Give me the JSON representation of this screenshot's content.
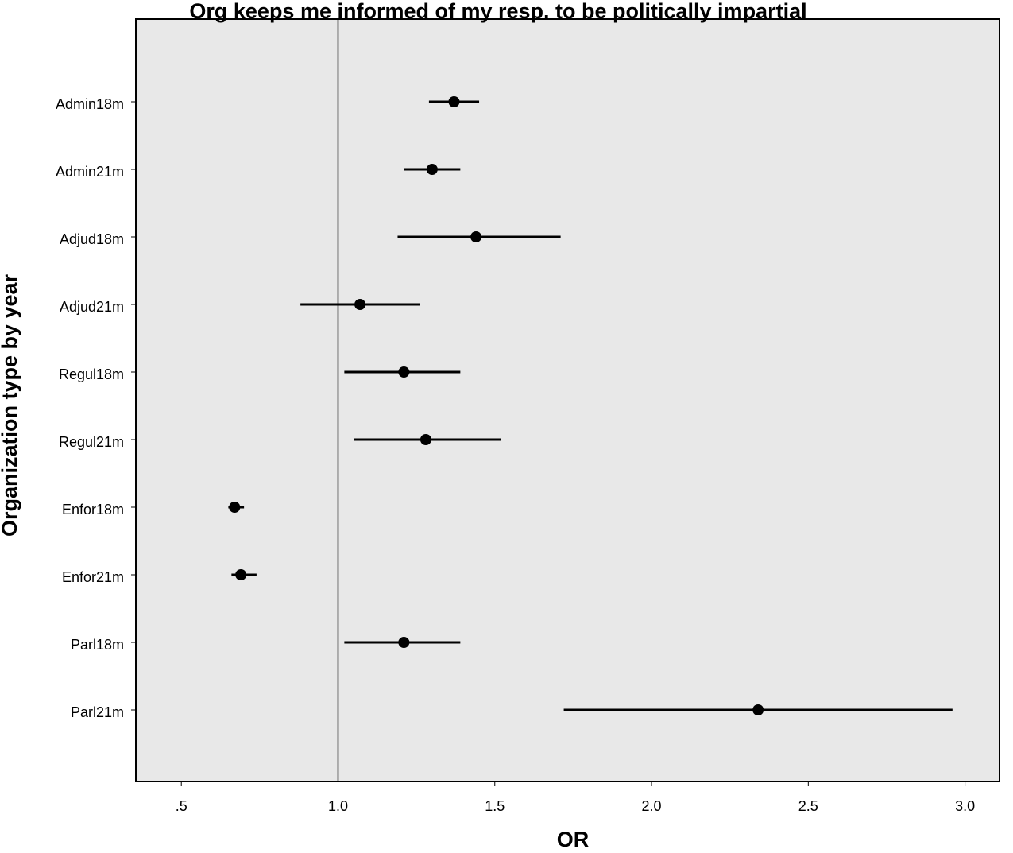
{
  "chart_data": {
    "type": "forest",
    "title": "Org keeps me informed of my resp. to be politically impartial",
    "xlabel": "OR",
    "ylabel": "Organization type by year",
    "categories": [
      "Admin18m",
      "Admin21m",
      "Adjud18m",
      "Adjud21m",
      "Regul18m",
      "Regul21m",
      "Enfor18m",
      "Enfor21m",
      "Parl18m",
      "Parl21m"
    ],
    "values": [
      1.37,
      1.3,
      1.44,
      1.07,
      1.21,
      1.28,
      0.67,
      0.69,
      1.21,
      2.34
    ],
    "lower": [
      1.29,
      1.21,
      1.19,
      0.88,
      1.02,
      1.05,
      0.65,
      0.66,
      1.02,
      1.72
    ],
    "upper": [
      1.45,
      1.39,
      1.71,
      1.26,
      1.39,
      1.52,
      0.7,
      0.74,
      1.39,
      2.96
    ],
    "color": "#000000",
    "ref_line": 1,
    "xlim": [
      0.355,
      3.11
    ],
    "xticks": [
      {
        "value": 0.5,
        "label": ".5"
      },
      {
        "value": 1,
        "label": "1.0"
      },
      1.5,
      {
        "value": 2,
        "label": "2.0"
      },
      2.5,
      {
        "value": 3,
        "label": "3.0"
      }
    ]
  }
}
